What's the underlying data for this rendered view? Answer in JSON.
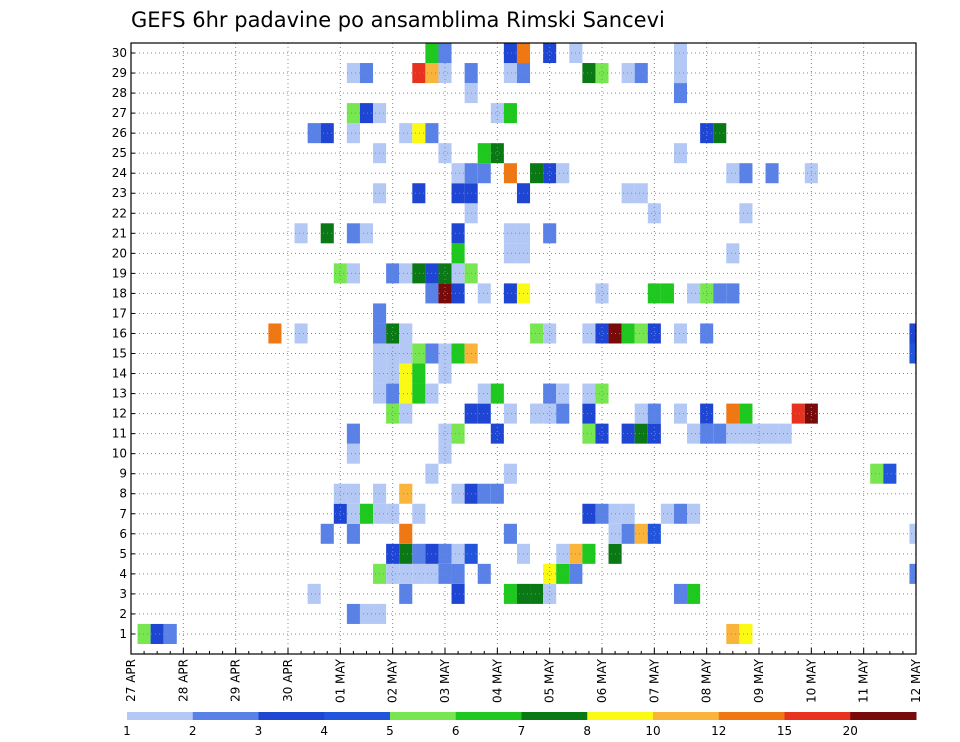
{
  "chart_data": {
    "type": "heatmap",
    "title": "GEFS 6hr padavine po ansamblima Rimski Sancevi",
    "xlabel": "",
    "ylabel": "",
    "x_tick_labels": [
      "27 APR",
      "28 APR",
      "29 APR",
      "30 APR",
      "01 MAY",
      "02 MAY",
      "03 MAY",
      "04 MAY",
      "05 MAY",
      "06 MAY",
      "07 MAY",
      "08 MAY",
      "09 MAY",
      "10 MAY",
      "11 MAY",
      "12 MAY"
    ],
    "y_tick_labels": [
      "1",
      "2",
      "3",
      "4",
      "5",
      "6",
      "7",
      "8",
      "9",
      "10",
      "11",
      "12",
      "13",
      "14",
      "15",
      "16",
      "17",
      "18",
      "19",
      "20",
      "21",
      "22",
      "23",
      "24",
      "25",
      "26",
      "27",
      "28",
      "29",
      "30"
    ],
    "time_steps": 61,
    "time_step_hours": 6,
    "members": 30,
    "grid": true,
    "legend_position": "bottom",
    "legend": {
      "levels": [
        "1",
        "2",
        "3",
        "4",
        "5",
        "6",
        "7",
        "8",
        "10",
        "12",
        "15",
        "20"
      ],
      "colors": [
        "#b4c8f5",
        "#5a82e6",
        "#1e46d2",
        "#2355dc",
        "#78e650",
        "#1ec81e",
        "#0a7814",
        "#fafa14",
        "#fab43c",
        "#f07814",
        "#e6321e",
        "#780a0a"
      ]
    },
    "cells": [
      [
        1,
        1,
        5
      ],
      [
        1,
        2,
        3
      ],
      [
        1,
        3,
        2
      ],
      [
        1,
        46,
        9
      ],
      [
        1,
        47,
        8
      ],
      [
        2,
        17,
        2
      ],
      [
        2,
        18,
        1
      ],
      [
        2,
        19,
        1
      ],
      [
        3,
        14,
        1
      ],
      [
        3,
        21,
        2
      ],
      [
        3,
        25,
        3
      ],
      [
        3,
        29,
        6
      ],
      [
        3,
        30,
        7
      ],
      [
        3,
        31,
        7
      ],
      [
        3,
        32,
        1
      ],
      [
        3,
        42,
        2
      ],
      [
        3,
        43,
        6
      ],
      [
        4,
        19,
        5
      ],
      [
        4,
        20,
        1
      ],
      [
        4,
        21,
        1
      ],
      [
        4,
        22,
        1
      ],
      [
        4,
        23,
        1
      ],
      [
        4,
        24,
        2
      ],
      [
        4,
        25,
        2
      ],
      [
        4,
        27,
        2
      ],
      [
        4,
        32,
        8
      ],
      [
        4,
        33,
        6
      ],
      [
        4,
        34,
        2
      ],
      [
        4,
        60,
        2
      ],
      [
        5,
        20,
        3
      ],
      [
        5,
        21,
        7
      ],
      [
        5,
        22,
        2
      ],
      [
        5,
        23,
        3
      ],
      [
        5,
        24,
        2
      ],
      [
        5,
        25,
        1
      ],
      [
        5,
        26,
        4
      ],
      [
        5,
        30,
        1
      ],
      [
        5,
        33,
        1
      ],
      [
        5,
        34,
        9
      ],
      [
        5,
        35,
        6
      ],
      [
        5,
        37,
        7
      ],
      [
        6,
        15,
        2
      ],
      [
        6,
        17,
        2
      ],
      [
        6,
        21,
        10
      ],
      [
        6,
        29,
        2
      ],
      [
        6,
        37,
        1
      ],
      [
        6,
        38,
        2
      ],
      [
        6,
        39,
        9
      ],
      [
        6,
        40,
        4
      ],
      [
        6,
        60,
        1
      ],
      [
        7,
        16,
        3
      ],
      [
        7,
        17,
        1
      ],
      [
        7,
        18,
        6
      ],
      [
        7,
        19,
        1
      ],
      [
        7,
        20,
        1
      ],
      [
        7,
        22,
        1
      ],
      [
        7,
        35,
        3
      ],
      [
        7,
        36,
        2
      ],
      [
        7,
        37,
        1
      ],
      [
        7,
        38,
        1
      ],
      [
        7,
        41,
        1
      ],
      [
        7,
        42,
        2
      ],
      [
        7,
        43,
        1
      ],
      [
        8,
        16,
        1
      ],
      [
        8,
        17,
        1
      ],
      [
        8,
        19,
        1
      ],
      [
        8,
        21,
        9
      ],
      [
        8,
        25,
        1
      ],
      [
        8,
        26,
        3
      ],
      [
        8,
        27,
        2
      ],
      [
        8,
        28,
        2
      ],
      [
        9,
        23,
        1
      ],
      [
        9,
        29,
        1
      ],
      [
        9,
        57,
        5
      ],
      [
        9,
        58,
        4
      ],
      [
        10,
        17,
        1
      ],
      [
        10,
        24,
        1
      ],
      [
        11,
        17,
        2
      ],
      [
        11,
        24,
        1
      ],
      [
        11,
        25,
        5
      ],
      [
        11,
        28,
        3
      ],
      [
        11,
        35,
        5
      ],
      [
        11,
        36,
        3
      ],
      [
        11,
        38,
        3
      ],
      [
        11,
        39,
        7
      ],
      [
        11,
        40,
        3
      ],
      [
        11,
        43,
        1
      ],
      [
        11,
        44,
        2
      ],
      [
        11,
        45,
        2
      ],
      [
        11,
        46,
        1
      ],
      [
        11,
        47,
        1
      ],
      [
        11,
        48,
        1
      ],
      [
        11,
        49,
        1
      ],
      [
        11,
        50,
        1
      ],
      [
        12,
        20,
        5
      ],
      [
        12,
        21,
        1
      ],
      [
        12,
        26,
        3
      ],
      [
        12,
        27,
        3
      ],
      [
        12,
        29,
        1
      ],
      [
        12,
        31,
        1
      ],
      [
        12,
        32,
        1
      ],
      [
        12,
        33,
        2
      ],
      [
        12,
        35,
        3
      ],
      [
        12,
        39,
        1
      ],
      [
        12,
        40,
        2
      ],
      [
        12,
        42,
        1
      ],
      [
        12,
        44,
        3
      ],
      [
        12,
        46,
        10
      ],
      [
        12,
        47,
        6
      ],
      [
        12,
        51,
        11
      ],
      [
        12,
        52,
        12
      ],
      [
        13,
        19,
        1
      ],
      [
        13,
        20,
        2
      ],
      [
        13,
        21,
        8
      ],
      [
        13,
        22,
        6
      ],
      [
        13,
        23,
        1
      ],
      [
        13,
        27,
        1
      ],
      [
        13,
        28,
        6
      ],
      [
        13,
        32,
        2
      ],
      [
        13,
        33,
        1
      ],
      [
        13,
        35,
        1
      ],
      [
        13,
        36,
        5
      ],
      [
        14,
        19,
        1
      ],
      [
        14,
        20,
        1
      ],
      [
        14,
        21,
        8
      ],
      [
        14,
        22,
        6
      ],
      [
        14,
        24,
        1
      ],
      [
        15,
        19,
        1
      ],
      [
        15,
        20,
        1
      ],
      [
        15,
        21,
        1
      ],
      [
        15,
        22,
        5
      ],
      [
        15,
        23,
        2
      ],
      [
        15,
        24,
        1
      ],
      [
        15,
        25,
        6
      ],
      [
        15,
        26,
        9
      ],
      [
        15,
        60,
        4
      ],
      [
        16,
        11,
        10
      ],
      [
        16,
        13,
        1
      ],
      [
        16,
        19,
        2
      ],
      [
        16,
        20,
        7
      ],
      [
        16,
        21,
        1
      ],
      [
        16,
        31,
        5
      ],
      [
        16,
        32,
        1
      ],
      [
        16,
        35,
        1
      ],
      [
        16,
        36,
        3
      ],
      [
        16,
        37,
        12
      ],
      [
        16,
        38,
        6
      ],
      [
        16,
        39,
        5
      ],
      [
        16,
        40,
        3
      ],
      [
        16,
        42,
        1
      ],
      [
        16,
        44,
        2
      ],
      [
        16,
        60,
        3
      ],
      [
        17,
        19,
        2
      ],
      [
        18,
        23,
        2
      ],
      [
        18,
        24,
        12
      ],
      [
        18,
        25,
        3
      ],
      [
        18,
        27,
        1
      ],
      [
        18,
        29,
        3
      ],
      [
        18,
        30,
        8
      ],
      [
        18,
        36,
        1
      ],
      [
        18,
        40,
        6
      ],
      [
        18,
        41,
        6
      ],
      [
        18,
        43,
        1
      ],
      [
        18,
        44,
        5
      ],
      [
        18,
        45,
        2
      ],
      [
        18,
        46,
        2
      ],
      [
        19,
        16,
        5
      ],
      [
        19,
        17,
        1
      ],
      [
        19,
        20,
        2
      ],
      [
        19,
        21,
        1
      ],
      [
        19,
        22,
        7
      ],
      [
        19,
        23,
        3
      ],
      [
        19,
        24,
        7
      ],
      [
        19,
        25,
        1
      ],
      [
        19,
        26,
        5
      ],
      [
        20,
        25,
        6
      ],
      [
        20,
        29,
        1
      ],
      [
        20,
        30,
        1
      ],
      [
        20,
        46,
        1
      ],
      [
        21,
        13,
        1
      ],
      [
        21,
        15,
        7
      ],
      [
        21,
        17,
        2
      ],
      [
        21,
        18,
        1
      ],
      [
        21,
        25,
        3
      ],
      [
        21,
        29,
        1
      ],
      [
        21,
        30,
        1
      ],
      [
        21,
        32,
        2
      ],
      [
        22,
        26,
        1
      ],
      [
        22,
        40,
        1
      ],
      [
        22,
        47,
        1
      ],
      [
        23,
        19,
        1
      ],
      [
        23,
        22,
        3
      ],
      [
        23,
        25,
        3
      ],
      [
        23,
        26,
        3
      ],
      [
        23,
        30,
        3
      ],
      [
        23,
        38,
        1
      ],
      [
        23,
        39,
        1
      ],
      [
        24,
        25,
        1
      ],
      [
        24,
        26,
        2
      ],
      [
        24,
        27,
        2
      ],
      [
        24,
        29,
        10
      ],
      [
        24,
        31,
        7
      ],
      [
        24,
        32,
        3
      ],
      [
        24,
        33,
        1
      ],
      [
        24,
        46,
        1
      ],
      [
        24,
        47,
        2
      ],
      [
        24,
        49,
        2
      ],
      [
        24,
        52,
        1
      ],
      [
        25,
        19,
        1
      ],
      [
        25,
        24,
        1
      ],
      [
        25,
        27,
        6
      ],
      [
        25,
        28,
        7
      ],
      [
        25,
        42,
        1
      ],
      [
        26,
        14,
        2
      ],
      [
        26,
        15,
        3
      ],
      [
        26,
        17,
        1
      ],
      [
        26,
        21,
        1
      ],
      [
        26,
        22,
        8
      ],
      [
        26,
        23,
        2
      ],
      [
        26,
        44,
        3
      ],
      [
        26,
        45,
        7
      ],
      [
        27,
        17,
        5
      ],
      [
        27,
        18,
        3
      ],
      [
        27,
        19,
        1
      ],
      [
        27,
        28,
        1
      ],
      [
        27,
        29,
        6
      ],
      [
        28,
        26,
        1
      ],
      [
        28,
        42,
        2
      ],
      [
        29,
        17,
        1
      ],
      [
        29,
        18,
        2
      ],
      [
        29,
        22,
        11
      ],
      [
        29,
        23,
        9
      ],
      [
        29,
        24,
        1
      ],
      [
        29,
        26,
        2
      ],
      [
        29,
        29,
        1
      ],
      [
        29,
        30,
        2
      ],
      [
        29,
        35,
        7
      ],
      [
        29,
        36,
        5
      ],
      [
        29,
        38,
        1
      ],
      [
        29,
        39,
        2
      ],
      [
        29,
        42,
        1
      ],
      [
        30,
        23,
        6
      ],
      [
        30,
        24,
        2
      ],
      [
        30,
        29,
        3
      ],
      [
        30,
        30,
        10
      ],
      [
        30,
        32,
        3
      ],
      [
        30,
        34,
        1
      ],
      [
        30,
        42,
        1
      ]
    ]
  }
}
